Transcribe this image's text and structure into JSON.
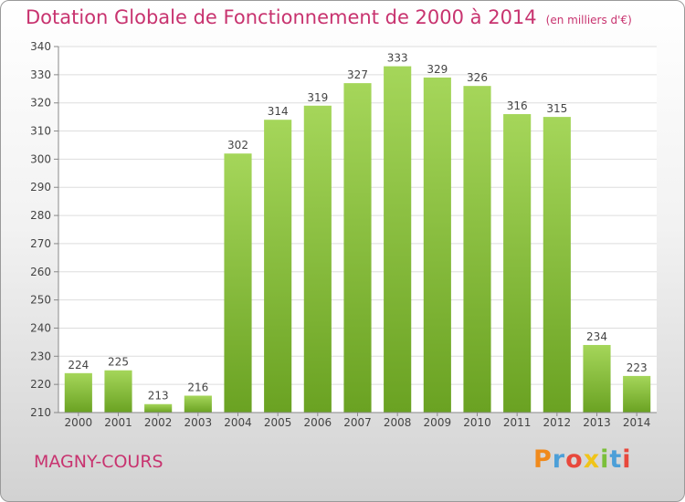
{
  "header": {
    "title": "Dotation Globale de Fonctionnement de 2000 à 2014",
    "unit": "(en milliers d'€)"
  },
  "footer": {
    "commune": "MAGNY-COURS",
    "logo_text": "Proxiti",
    "logo_colors": [
      "#f08a1c",
      "#4c9fd8",
      "#e8483c",
      "#f0c419",
      "#7bbf3a",
      "#4c9fd8",
      "#e8483c"
    ]
  },
  "colors": {
    "bar_light": "#a5d65a",
    "bar_dark": "#6aa222",
    "grid": "#dddddd",
    "text": "#444444"
  },
  "chart_data": {
    "type": "bar",
    "categories": [
      "2000",
      "2001",
      "2002",
      "2003",
      "2004",
      "2005",
      "2006",
      "2007",
      "2008",
      "2009",
      "2010",
      "2011",
      "2012",
      "2013",
      "2014"
    ],
    "values": [
      224,
      225,
      213,
      216,
      302,
      314,
      319,
      327,
      333,
      329,
      326,
      316,
      315,
      234,
      223
    ],
    "title": "Dotation Globale de Fonctionnement de 2000 à 2014",
    "subtitle": "(en milliers d'€)",
    "ylim": [
      210,
      340
    ],
    "yticks": [
      210,
      220,
      230,
      240,
      250,
      260,
      270,
      280,
      290,
      300,
      310,
      320,
      330,
      340
    ],
    "grid": true,
    "data_labels": true
  }
}
